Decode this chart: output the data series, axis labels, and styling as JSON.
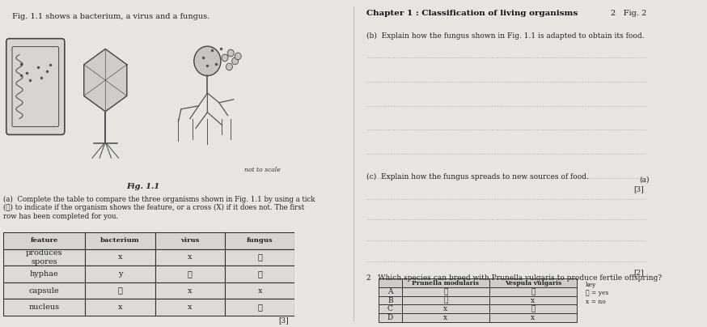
{
  "bg_color": "#e8e4e0",
  "left_panel": {
    "fig_caption": "Fig. 1.1 shows a bacterium, a virus and a fungus.",
    "fig_label": "Fig. 1.1",
    "not_to_scale": "not to scale",
    "part_a_text": "(a)  Complete the table to compare the three organisms shown in Fig. 1.1 by using a tick\n(✓) to indicate if the organism shows the feature, or a cross (X) if it does not. The first\nrow has been completed for you.",
    "table_headers": [
      "feature",
      "bacterium",
      "virus",
      "fungus"
    ],
    "table_rows": [
      [
        "produces\nspores",
        "x",
        "x",
        "✓"
      ],
      [
        "hyphae",
        "y",
        "✓",
        "✓"
      ],
      [
        "capsule",
        "✓",
        "x",
        "x"
      ],
      [
        "nucleus",
        "x",
        "x",
        "✓"
      ]
    ],
    "mark_bottom": "[3]"
  },
  "right_panel": {
    "chapter_title": "Chapter 1 : Classification of living organisms",
    "page_ref": "2   Fig. 2",
    "part_b_label": "(b)  Explain how the fungus shown in Fig. 1.1 is adapted to obtain its food.",
    "part_b_lines": 6,
    "part_b_mark": "[3]",
    "part_c_label": "(c)  Explain how the fungus spreads to new sources of food.",
    "part_c_lines": 4,
    "part_c_mark": "[2]",
    "part_c_aside": "(a)",
    "q2_label": "2   Which species can breed with Prunella vulgaris to produce fertile offspring?",
    "q2_table_headers": [
      "",
      "Prunella modularis",
      "Vespula vulgaris"
    ],
    "q2_table_rows": [
      [
        "A",
        "✓",
        "✓"
      ],
      [
        "B",
        "✓",
        "x"
      ],
      [
        "C",
        "x",
        "✓"
      ],
      [
        "D",
        "x",
        "x"
      ]
    ],
    "q2_key": [
      "key",
      "✓ = yes",
      "x = no"
    ]
  }
}
